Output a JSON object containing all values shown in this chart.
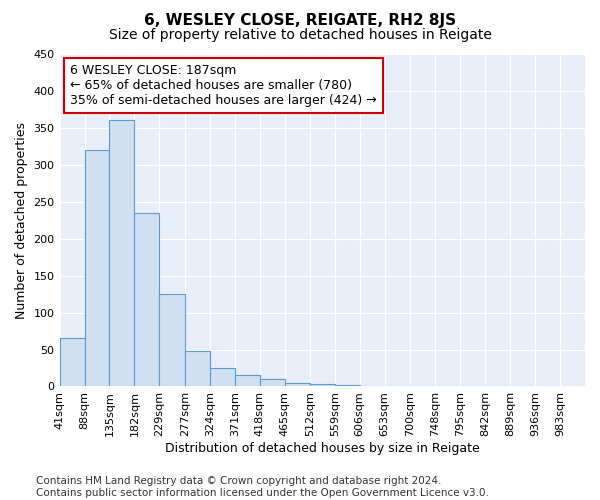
{
  "title": "6, WESLEY CLOSE, REIGATE, RH2 8JS",
  "subtitle": "Size of property relative to detached houses in Reigate",
  "xlabel": "Distribution of detached houses by size in Reigate",
  "ylabel": "Number of detached properties",
  "bar_left_edges": [
    41,
    88,
    135,
    182,
    229,
    277,
    324,
    371,
    418,
    465,
    512,
    559,
    606,
    653,
    700,
    748,
    795,
    842,
    889,
    936
  ],
  "bar_widths": [
    47,
    47,
    47,
    47,
    48,
    47,
    47,
    47,
    47,
    47,
    47,
    47,
    47,
    47,
    48,
    47,
    47,
    47,
    47,
    47
  ],
  "bar_heights": [
    65,
    320,
    360,
    235,
    125,
    48,
    25,
    15,
    10,
    5,
    3,
    2,
    1,
    1,
    1,
    1,
    0.5,
    0.5,
    0.5,
    0.5
  ],
  "bar_color": "#d0e0f0",
  "bar_edgecolor": "#5b9bd5",
  "tick_labels": [
    "41sqm",
    "88sqm",
    "135sqm",
    "182sqm",
    "229sqm",
    "277sqm",
    "324sqm",
    "371sqm",
    "418sqm",
    "465sqm",
    "512sqm",
    "559sqm",
    "606sqm",
    "653sqm",
    "700sqm",
    "748sqm",
    "795sqm",
    "842sqm",
    "889sqm",
    "936sqm",
    "983sqm"
  ],
  "ylim": [
    0,
    450
  ],
  "yticks": [
    0,
    50,
    100,
    150,
    200,
    250,
    300,
    350,
    400,
    450
  ],
  "annotation_text": "6 WESLEY CLOSE: 187sqm\n← 65% of detached houses are smaller (780)\n35% of semi-detached houses are larger (424) →",
  "annotation_box_facecolor": "#ffffff",
  "annotation_box_edgecolor": "#cc0000",
  "footer_line1": "Contains HM Land Registry data © Crown copyright and database right 2024.",
  "footer_line2": "Contains public sector information licensed under the Open Government Licence v3.0.",
  "fig_background_color": "#ffffff",
  "plot_background_color": "#e8eef8",
  "grid_color": "#ffffff",
  "title_fontsize": 11,
  "subtitle_fontsize": 10,
  "axis_label_fontsize": 9,
  "tick_fontsize": 8,
  "annotation_fontsize": 9,
  "footer_fontsize": 7.5
}
